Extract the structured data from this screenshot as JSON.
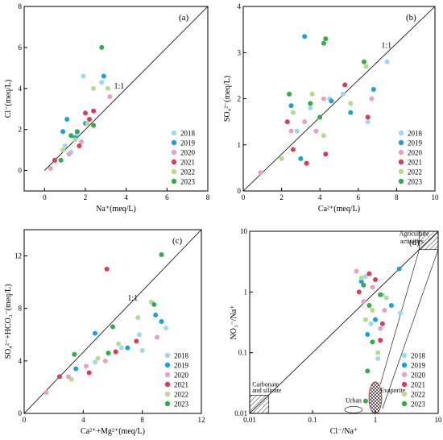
{
  "years": [
    "2018",
    "2019",
    "2020",
    "2021",
    "2022",
    "2023"
  ],
  "colors": {
    "2018": "#9dd7f0",
    "2019": "#1a9fe0",
    "2020": "#e8a0c8",
    "2021": "#dc3a58",
    "2022": "#b3dc8c",
    "2023": "#2fae48"
  },
  "chart_data": [
    {
      "type": "scatter",
      "panel": "(a)",
      "xlabel": "Na⁺(meq/L)",
      "ylabel": "Cl⁻(meq/L)",
      "xlim": [
        -1,
        8
      ],
      "ylim": [
        -1,
        8
      ],
      "xticks": [
        "0",
        "2",
        "4",
        "6",
        "8"
      ],
      "yticks": [
        "0",
        "2",
        "4",
        "6",
        "8"
      ],
      "reference_line": "1:1",
      "legend": "bottom-right",
      "series": [
        {
          "name": "2018",
          "x": [
            1.9,
            2.8,
            1.6,
            1.0,
            1.3
          ],
          "y": [
            4.6,
            4.3,
            1.8,
            1.2,
            0.9
          ]
        },
        {
          "name": "2019",
          "x": [
            2.9,
            1.1,
            0.9,
            1.5,
            2.0
          ],
          "y": [
            4.6,
            2.5,
            1.9,
            1.6,
            2.3
          ]
        },
        {
          "name": "2020",
          "x": [
            3.2,
            0.3,
            1.2,
            1.8
          ],
          "y": [
            3.6,
            0.1,
            0.8,
            1.4
          ]
        },
        {
          "name": "2021",
          "x": [
            2.4,
            0.5,
            1.7,
            2.0,
            2.2
          ],
          "y": [
            2.9,
            0.5,
            1.2,
            2.8,
            2.5
          ]
        },
        {
          "name": "2022",
          "x": [
            2.4,
            3.1,
            1.5,
            0.9,
            2.1
          ],
          "y": [
            4.0,
            4.0,
            1.5,
            1.0,
            2.3
          ]
        },
        {
          "name": "2023",
          "x": [
            2.8,
            1.3,
            0.8,
            2.4,
            1.6
          ],
          "y": [
            6.0,
            1.7,
            0.5,
            2.2,
            1.9
          ]
        }
      ]
    },
    {
      "type": "scatter",
      "panel": "(b)",
      "xlabel": "Ca²⁺(meq/L)",
      "ylabel": "SO₄²⁻(meq/L)",
      "xlim": [
        0,
        10
      ],
      "ylim": [
        0,
        4
      ],
      "xticks": [
        "0",
        "2",
        "4",
        "6",
        "8",
        "10"
      ],
      "yticks": [
        "0",
        "1",
        "2",
        "3",
        "4"
      ],
      "reference_line": "1:1",
      "legend": "bottom-right",
      "series": [
        {
          "name": "2018",
          "x": [
            7.5,
            5.2,
            4.5,
            3.5,
            6.5,
            2.8
          ],
          "y": [
            2.8,
            2.1,
            2.0,
            1.8,
            1.5,
            1.3
          ]
        },
        {
          "name": "2019",
          "x": [
            3.2,
            6.8,
            4.6,
            2.5,
            5.6,
            3.0
          ],
          "y": [
            3.35,
            2.2,
            1.95,
            1.85,
            1.7,
            0.7
          ]
        },
        {
          "name": "2020",
          "x": [
            0.9,
            2.5,
            3.2,
            4.2,
            6.7,
            3.8
          ],
          "y": [
            0.4,
            1.3,
            1.5,
            2.0,
            2.0,
            1.3
          ]
        },
        {
          "name": "2021",
          "x": [
            4.3,
            2.3,
            3.3,
            5.3,
            6.5,
            2.6
          ],
          "y": [
            0.8,
            1.5,
            0.6,
            2.3,
            1.6,
            0.9
          ]
        },
        {
          "name": "2022",
          "x": [
            4.2,
            2.6,
            5.6,
            6.4,
            3.6,
            2.0
          ],
          "y": [
            1.2,
            1.7,
            1.9,
            2.7,
            2.1,
            0.7
          ]
        },
        {
          "name": "2023",
          "x": [
            4.3,
            4.2,
            6.3,
            2.4,
            4.0,
            3.5
          ],
          "y": [
            3.3,
            3.2,
            2.8,
            2.1,
            1.6,
            1.9
          ]
        }
      ]
    },
    {
      "type": "scatter",
      "panel": "(c)",
      "xlabel": "Ca²⁺+Mg²⁺(meq/L)",
      "ylabel": "SO₄²⁻+HCO₃⁻(meq/L)",
      "xlim": [
        0,
        12
      ],
      "ylim": [
        0,
        14
      ],
      "xticks": [
        "0",
        "4",
        "8",
        "12"
      ],
      "yticks": [
        "0",
        "4",
        "8",
        "12"
      ],
      "reference_line": "1:1",
      "legend": "bottom-right",
      "series": [
        {
          "name": "2018",
          "x": [
            9.6,
            6.6,
            8.0,
            4.8,
            7.8
          ],
          "y": [
            6.5,
            5.0,
            4.8,
            3.9,
            6.0
          ]
        },
        {
          "name": "2019",
          "x": [
            8.9,
            4.8,
            9.3,
            3.5,
            7.0
          ],
          "y": [
            7.5,
            6.1,
            7.0,
            3.4,
            5.0
          ]
        },
        {
          "name": "2020",
          "x": [
            1.5,
            3.0,
            9.0,
            5.5,
            4.2
          ],
          "y": [
            1.6,
            2.8,
            5.8,
            4.0,
            3.6
          ]
        },
        {
          "name": "2021",
          "x": [
            5.6,
            2.4,
            4.4,
            7.6,
            6.2
          ],
          "y": [
            11.0,
            2.8,
            3.1,
            5.5,
            4.7
          ]
        },
        {
          "name": "2022",
          "x": [
            7.7,
            8.6,
            3.2,
            6.4,
            5.0
          ],
          "y": [
            7.3,
            8.5,
            2.6,
            5.3,
            4.2
          ]
        },
        {
          "name": "2023",
          "x": [
            9.3,
            8.8,
            3.4,
            6.0,
            5.7
          ],
          "y": [
            12.1,
            8.3,
            4.5,
            6.6,
            4.6
          ]
        }
      ]
    },
    {
      "type": "scatter",
      "panel": "(d)",
      "xlabel": "Cl⁻/Na⁺",
      "ylabel": "NO₃⁻/Na⁺",
      "xscale": "log",
      "yscale": "log",
      "xlim": [
        0.01,
        10
      ],
      "ylim": [
        0.01,
        10
      ],
      "xticks": [
        "0.01",
        "0.1",
        "1",
        "10"
      ],
      "yticks": [
        "0.01",
        "0.1",
        "1",
        "10"
      ],
      "reference_line": "1:1",
      "legend": "bottom-right",
      "regions": [
        "Carbonate and silicate",
        "Urban",
        "Evaporite",
        "Agriculture activities"
      ],
      "series": [
        {
          "name": "2018",
          "x": [
            0.7,
            1.3,
            2.5,
            1.1,
            0.85
          ],
          "y": [
            1.8,
            0.9,
            0.45,
            0.08,
            0.3
          ]
        },
        {
          "name": "2019",
          "x": [
            2.4,
            0.6,
            1.8,
            1.0,
            0.75
          ],
          "y": [
            2.4,
            1.5,
            0.6,
            0.35,
            0.2
          ]
        },
        {
          "name": "2020",
          "x": [
            0.5,
            0.9,
            1.2,
            0.65,
            1.4
          ],
          "y": [
            2.2,
            1.2,
            0.25,
            0.7,
            0.5
          ]
        },
        {
          "name": "2021",
          "x": [
            0.8,
            1.0,
            0.55,
            1.3,
            1.2
          ],
          "y": [
            2.0,
            1.6,
            1.0,
            0.3,
            0.16
          ]
        },
        {
          "name": "2022",
          "x": [
            0.6,
            1.5,
            0.9,
            0.7,
            1.1
          ],
          "y": [
            1.7,
            0.8,
            0.5,
            0.35,
            0.1
          ]
        },
        {
          "name": "2023",
          "x": [
            0.65,
            1.2,
            0.8,
            0.9,
            0.75,
            0.7
          ],
          "y": [
            1.3,
            0.9,
            0.6,
            0.15,
            0.05,
            0.016
          ]
        }
      ]
    }
  ]
}
